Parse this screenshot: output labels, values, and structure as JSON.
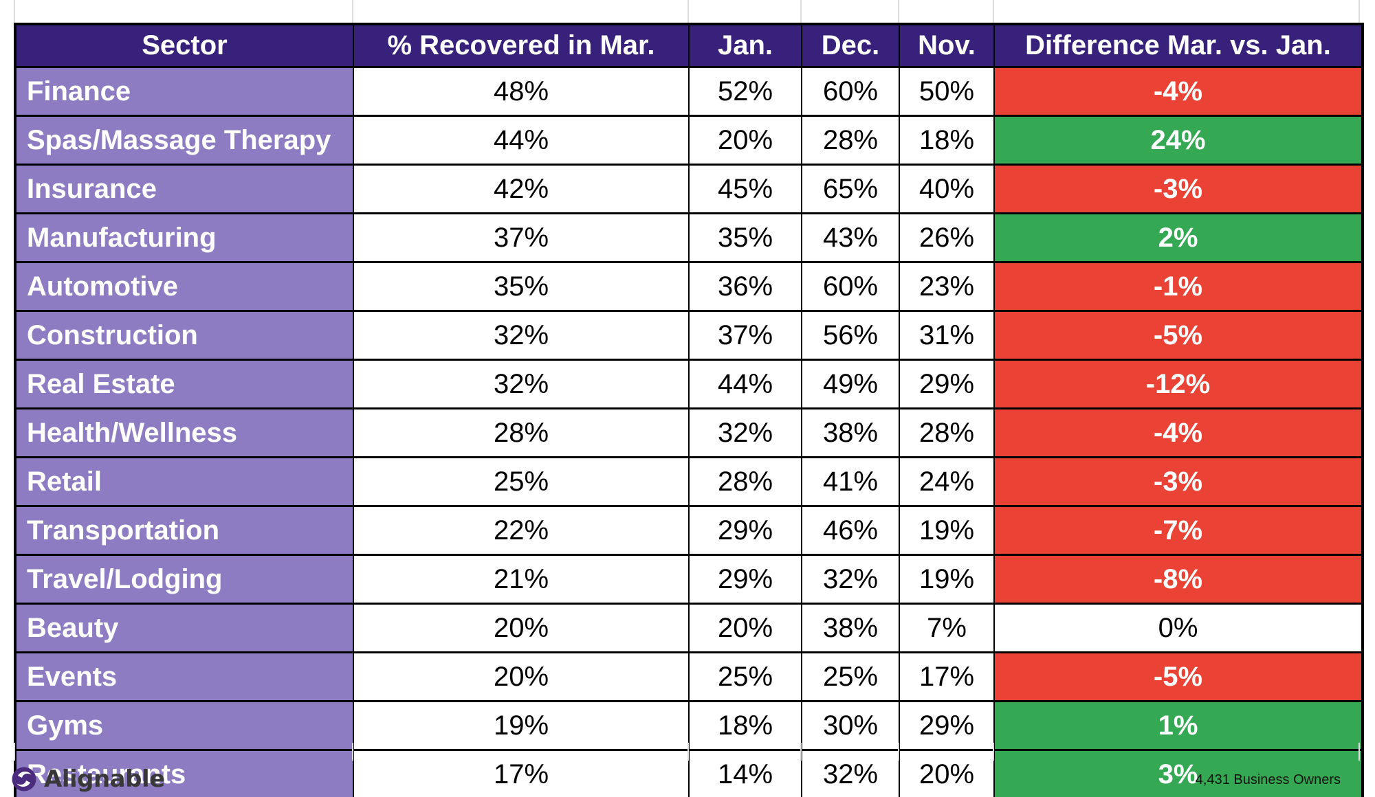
{
  "chart_data": {
    "type": "table",
    "columns": [
      "Sector",
      "% Recovered in Mar.",
      "Jan.",
      "Dec.",
      "Nov.",
      "Difference Mar. vs. Jan."
    ],
    "rows": [
      {
        "sector": "Finance",
        "values": [
          "48%",
          "52%",
          "60%",
          "50%"
        ],
        "difference": "-4%",
        "difference_sentiment": "negative"
      },
      {
        "sector": "Spas/Massage Therapy",
        "values": [
          "44%",
          "20%",
          "28%",
          "18%"
        ],
        "difference": "24%",
        "difference_sentiment": "positive"
      },
      {
        "sector": "Insurance",
        "values": [
          "42%",
          "45%",
          "65%",
          "40%"
        ],
        "difference": "-3%",
        "difference_sentiment": "negative"
      },
      {
        "sector": "Manufacturing",
        "values": [
          "37%",
          "35%",
          "43%",
          "26%"
        ],
        "difference": "2%",
        "difference_sentiment": "positive"
      },
      {
        "sector": "Automotive",
        "values": [
          "35%",
          "36%",
          "60%",
          "23%"
        ],
        "difference": "-1%",
        "difference_sentiment": "negative"
      },
      {
        "sector": "Construction",
        "values": [
          "32%",
          "37%",
          "56%",
          "31%"
        ],
        "difference": "-5%",
        "difference_sentiment": "negative"
      },
      {
        "sector": "Real Estate",
        "values": [
          "32%",
          "44%",
          "49%",
          "29%"
        ],
        "difference": "-12%",
        "difference_sentiment": "negative"
      },
      {
        "sector": "Health/Wellness",
        "values": [
          "28%",
          "32%",
          "38%",
          "28%"
        ],
        "difference": "-4%",
        "difference_sentiment": "negative"
      },
      {
        "sector": "Retail",
        "values": [
          "25%",
          "28%",
          "41%",
          "24%"
        ],
        "difference": "-3%",
        "difference_sentiment": "negative"
      },
      {
        "sector": "Transportation",
        "values": [
          "22%",
          "29%",
          "46%",
          "19%"
        ],
        "difference": "-7%",
        "difference_sentiment": "negative"
      },
      {
        "sector": "Travel/Lodging",
        "values": [
          "21%",
          "29%",
          "32%",
          "19%"
        ],
        "difference": "-8%",
        "difference_sentiment": "negative"
      },
      {
        "sector": "Beauty",
        "values": [
          "20%",
          "20%",
          "38%",
          "7%"
        ],
        "difference": "0%",
        "difference_sentiment": "neutral"
      },
      {
        "sector": "Events",
        "values": [
          "20%",
          "25%",
          "25%",
          "17%"
        ],
        "difference": "-5%",
        "difference_sentiment": "negative"
      },
      {
        "sector": "Gyms",
        "values": [
          "19%",
          "18%",
          "30%",
          "29%"
        ],
        "difference": "1%",
        "difference_sentiment": "positive"
      },
      {
        "sector": "Restaurants",
        "values": [
          "17%",
          "14%",
          "32%",
          "20%"
        ],
        "difference": "3%",
        "difference_sentiment": "positive"
      }
    ],
    "legend_position": "none",
    "grid": "black cell borders"
  },
  "colors": {
    "header_bg": "#37217A",
    "sector_bg": "#8E7CC3",
    "negative": "#EA4335",
    "positive": "#34A853",
    "border": "#000000",
    "brand_purple": "#4B2B7E"
  },
  "footer": {
    "brand": "Alignable",
    "brand_icon": "alignable-swirl-icon",
    "sample_size": "4,431 Business Owners"
  }
}
